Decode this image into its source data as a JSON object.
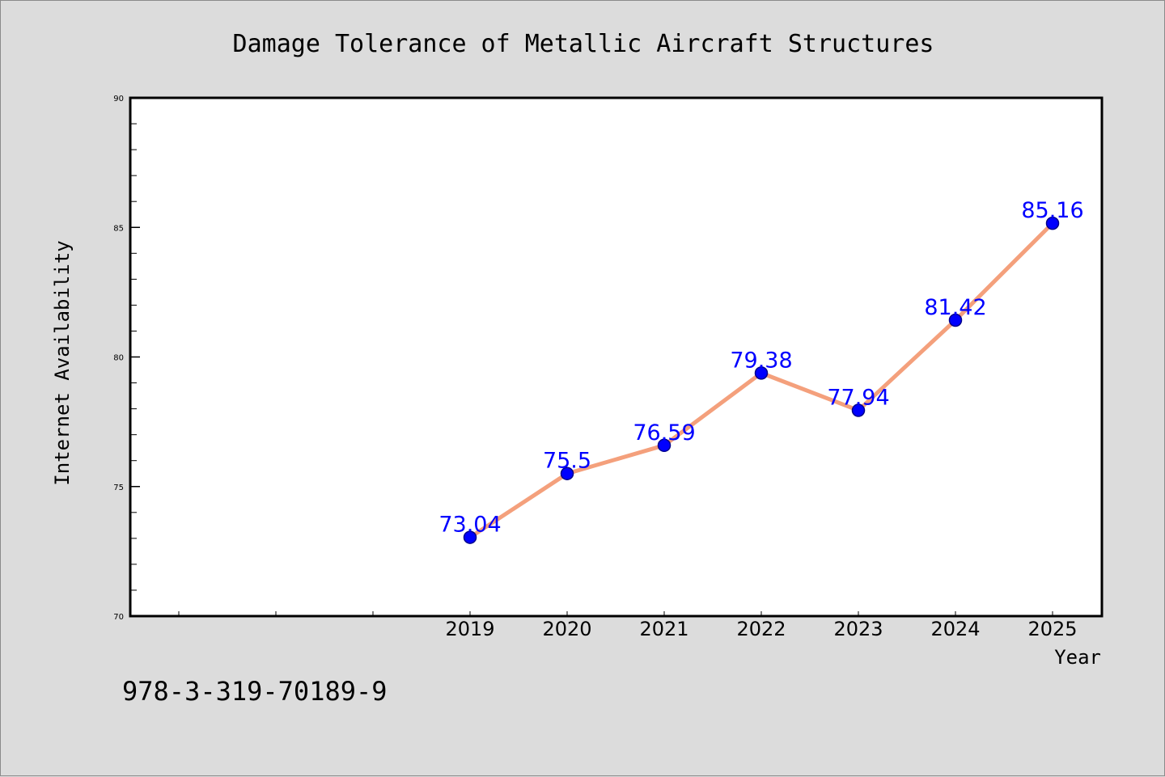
{
  "chart_data": {
    "type": "line",
    "title": "Damage Tolerance of Metallic Aircraft Structures",
    "xlabel": "Year",
    "ylabel": "Internet Availability",
    "x": [
      "2019",
      "2020",
      "2021",
      "2022",
      "2023",
      "2024",
      "2025"
    ],
    "series": [
      {
        "values": [
          73.04,
          75.5,
          76.59,
          79.38,
          77.94,
          81.42,
          85.16
        ],
        "labels": [
          "73.04",
          "75.5",
          "76.59",
          "79.38",
          "77.94",
          "81.42",
          "85.16"
        ]
      }
    ],
    "ylim": [
      70,
      90
    ],
    "yticks": [
      "70",
      "75",
      "80",
      "85",
      "90"
    ],
    "grid": false,
    "legend": "none",
    "colors": {
      "line": "#f4a07c",
      "marker": "#0000ff",
      "marker_edge": "#00008b",
      "data_label": "#0000ff",
      "plot_background": "#ffffff",
      "figure_background": "#dcdcdc"
    }
  },
  "footnote": "978-3-319-70189-9"
}
